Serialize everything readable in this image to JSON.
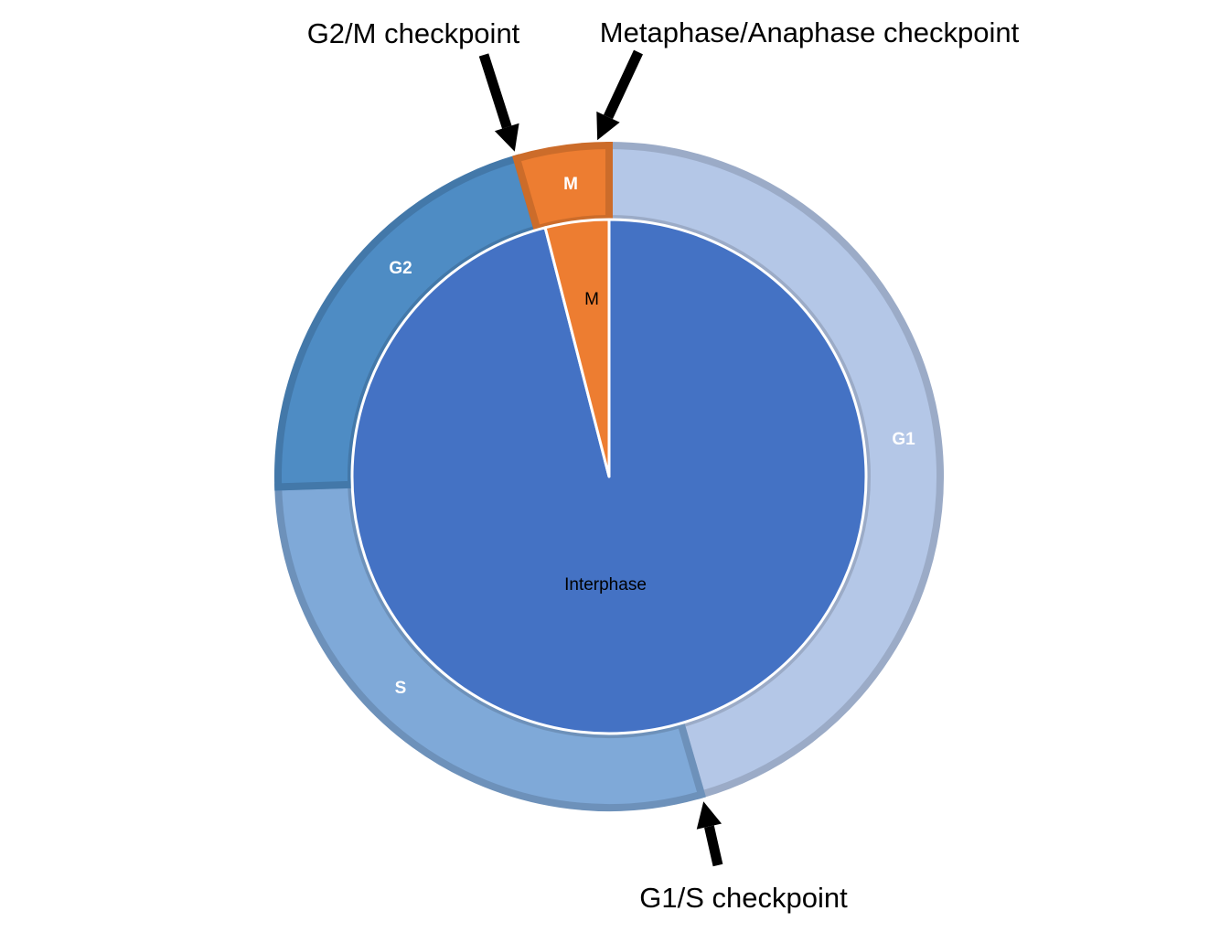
{
  "chart_data": {
    "type": "pie",
    "title": "",
    "colors": {
      "G1": "#b4c7e7",
      "S": "#7fa9d8",
      "G2": "#4e8cc4",
      "M": "#ed7d31",
      "Interphase": "#4472c4"
    },
    "outer_ring": {
      "series": [
        {
          "label": "G1",
          "value": 45.5
        },
        {
          "label": "S",
          "value": 29
        },
        {
          "label": "G2",
          "value": 21
        },
        {
          "label": "M",
          "value": 4.5
        }
      ]
    },
    "inner_pie": {
      "series": [
        {
          "label": "Interphase",
          "value": 96
        },
        {
          "label": "M",
          "value": 4
        }
      ]
    },
    "annotations": [
      {
        "id": "g2m",
        "text": "G2/M checkpoint"
      },
      {
        "id": "meta",
        "text": "Metaphase/Anaphase checkpoint"
      },
      {
        "id": "g1s",
        "text": "G1/S checkpoint"
      }
    ]
  }
}
